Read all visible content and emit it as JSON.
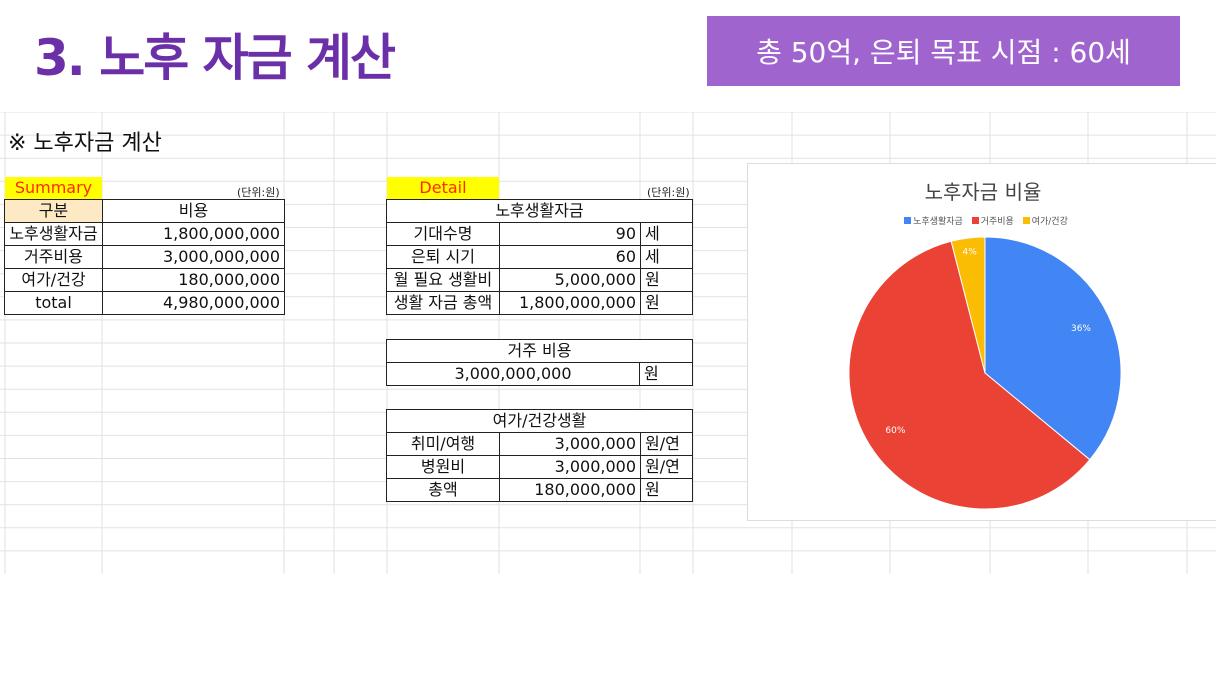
{
  "header": {
    "title": "3. 노후 자금 계산",
    "badge": "총 50억, 은퇴 목표 시점 : 60세"
  },
  "sheet": {
    "title": "※ 노후자금 계산"
  },
  "summary": {
    "label": "Summary",
    "unit": "(단위:원)",
    "headers": [
      "구분",
      "비용"
    ],
    "rows": [
      [
        "노후생활자금",
        "1,800,000,000"
      ],
      [
        "거주비용",
        "3,000,000,000"
      ],
      [
        "여가/건강",
        "180,000,000"
      ],
      [
        "total",
        "4,980,000,000"
      ]
    ]
  },
  "detail": {
    "label": "Detail",
    "unit": "(단위:원)",
    "living": {
      "title": "노후생활자금",
      "rows": [
        [
          "기대수명",
          "90",
          "세"
        ],
        [
          "은퇴 시기",
          "60",
          "세"
        ],
        [
          "월 필요 생활비",
          "5,000,000",
          "원"
        ],
        [
          "생활 자금 총액",
          "1,800,000,000",
          "원"
        ]
      ]
    },
    "housing": {
      "title": "거주 비용",
      "value": "3,000,000,000",
      "unit": "원"
    },
    "leisure": {
      "title": "여가/건강생활",
      "rows": [
        [
          "취미/여행",
          "3,000,000",
          "원/연"
        ],
        [
          "병원비",
          "3,000,000",
          "원/연"
        ],
        [
          "총액",
          "180,000,000",
          "원"
        ]
      ]
    }
  },
  "chart_data": {
    "type": "pie",
    "title": "노후자금 비율",
    "legend_position": "top",
    "categories": [
      "노후생활자금",
      "거주비용",
      "여가/건강"
    ],
    "values": [
      36,
      60,
      4
    ],
    "labels": [
      "36%",
      "60%",
      "4%"
    ],
    "colors": [
      "#4285f4",
      "#ea4335",
      "#fbbc04"
    ]
  }
}
